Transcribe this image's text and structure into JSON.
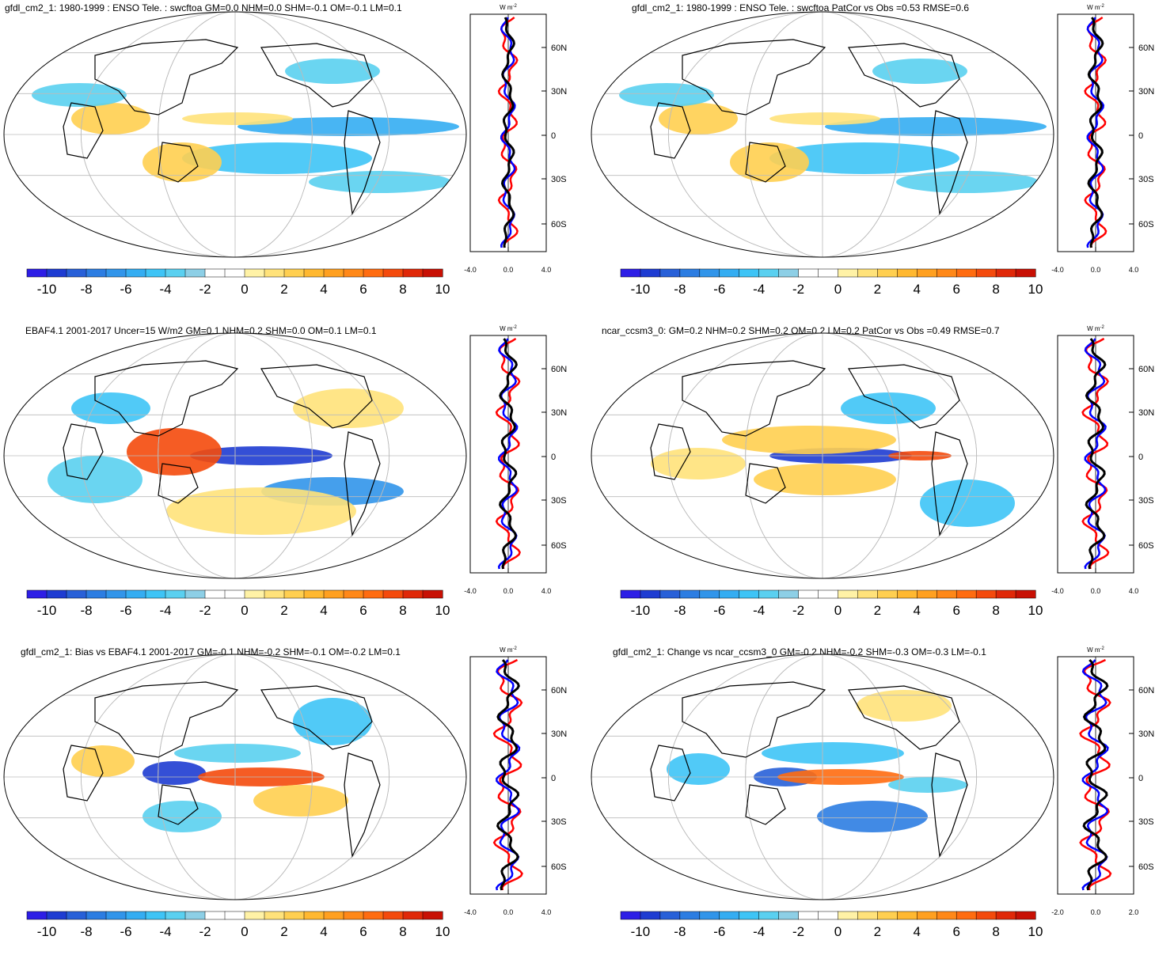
{
  "colorbar": {
    "colors": [
      "#2d1ee6",
      "#1e3cd2",
      "#2860d8",
      "#2c7de2",
      "#3195ea",
      "#34adf2",
      "#3ec4f6",
      "#5ad0f0",
      "#8dcfe6",
      "#ffffff",
      "#ffffff",
      "#fff2a6",
      "#ffe27a",
      "#ffcf50",
      "#ffb830",
      "#ffa020",
      "#ff8818",
      "#ff6c10",
      "#f44a0c",
      "#e02808",
      "#c81004"
    ],
    "labels": [
      "-10",
      "-8",
      "-6",
      "-4",
      "-2",
      "0",
      "2",
      "4",
      "6",
      "8",
      "10"
    ]
  },
  "profile_axis": {
    "unit": "W m",
    "unit_sup": "-2",
    "lat_labels": [
      "60N",
      "30N",
      "0",
      "30S",
      "60S"
    ],
    "x_labels_default": [
      "-4.0",
      "0.0",
      "4.0"
    ],
    "x_labels_last": [
      "-2.0",
      "0.0",
      "2.0"
    ]
  },
  "series_colors": {
    "model": "#0000ff",
    "obs": "#ff0000",
    "diff": "#000000"
  },
  "panels": [
    {
      "title": "gfdl_cm2_1: 1980-1999 : ENSO Tele. : swcftoa GM=0.0 NHM=0.0 SHM=-0.1 OM=-0.1 LM=0.1"
    },
    {
      "title": "gfdl_cm2_1: 1980-1999 : ENSO Tele. : swcftoa PatCor vs Obs =0.53 RMSE=0.6"
    },
    {
      "title": "EBAF4.1 2001-2017 Uncer=15 W/m2 GM=0.1 NHM=0.2 SHM=0.0 OM=0.1 LM=0.1"
    },
    {
      "title": "ncar_ccsm3_0: GM=0.2 NHM=0.2 SHM=0.2 OM=0.2 LM=0.2 PatCor vs Obs =0.49 RMSE=0.7"
    },
    {
      "title": "gfdl_cm2_1: Bias vs EBAF4.1 2001-2017 GM=-0.1 NHM=-0.2 SHM=-0.1 OM=-0.2 LM=0.1"
    },
    {
      "title": "gfdl_cm2_1: Change vs ncar_ccsm3_0 GM=-0.2 NHM=-0.2 SHM=-0.3 OM=-0.3 LM=-0.1"
    }
  ]
}
